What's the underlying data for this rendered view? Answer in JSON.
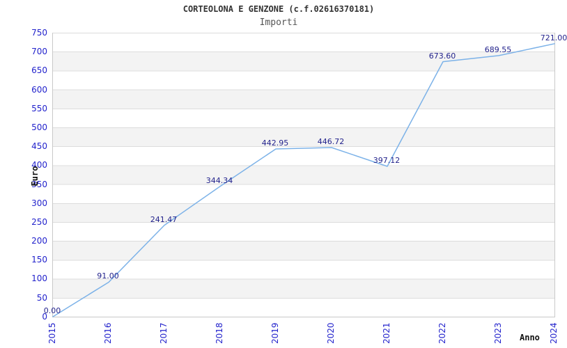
{
  "header": {
    "title": "CORTEOLONA E GENZONE (c.f.02616370181)",
    "subtitle": "Importi"
  },
  "chart_data": {
    "type": "line",
    "title": "CORTEOLONA E GENZONE (c.f.02616370181)",
    "subtitle": "Importi",
    "xlabel": "Anno",
    "ylabel": "Euro",
    "x": [
      2015,
      2016,
      2017,
      2018,
      2019,
      2020,
      2021,
      2022,
      2023,
      2024
    ],
    "values": [
      0.0,
      91.0,
      241.47,
      344.34,
      442.95,
      446.72,
      397.12,
      673.6,
      689.55,
      721.0
    ],
    "point_labels": [
      "0.00",
      "91.00",
      "241.47",
      "344.34",
      "442.95",
      "446.72",
      "397.12",
      "673.60",
      "689.55",
      "721.00"
    ],
    "x_ticks": [
      "2015",
      "2016",
      "2017",
      "2018",
      "2019",
      "2020",
      "2021",
      "2022",
      "2023",
      "2024"
    ],
    "y_ticks": [
      "750",
      "700",
      "650",
      "600",
      "550",
      "500",
      "450",
      "400",
      "350",
      "300",
      "250",
      "200",
      "150",
      "100",
      "50",
      "0"
    ],
    "ylim": [
      0,
      750
    ],
    "ytick_step": 50,
    "grid": "horizontal-bands",
    "legend": "none"
  },
  "colors": {
    "line": "#7cb2e8",
    "tick_label": "#2323cc",
    "point_label": "#23238c",
    "band": "#f3f3f3",
    "gridline": "#dcdcdc",
    "plot_border": "#c9c9c9",
    "title": "#333333",
    "subtitle": "#555555",
    "axis_title": "#111111"
  }
}
